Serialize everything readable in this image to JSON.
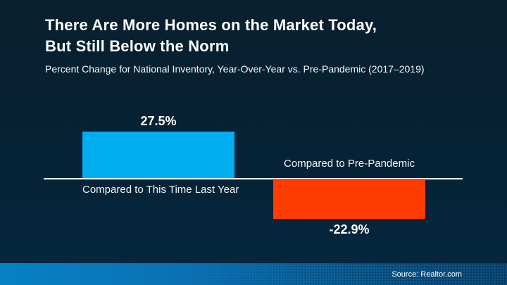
{
  "slide": {
    "title_line1": "There Are More Homes on the Market Today,",
    "title_line2": "But Still Below the Norm",
    "subtitle": "Percent Change for National Inventory, Year-Over-Year vs. Pre-Pandemic (2017–2019)",
    "source": "Source: Realtor.com",
    "colors": {
      "background_top": "#081f2e",
      "background_bottom": "#05273f",
      "title_text": "#ffffff",
      "axis_line": "#ffffff",
      "footer_gradient_left": "#0781c5",
      "footer_gradient_right": "#0d4a77"
    }
  },
  "chart_data": {
    "type": "bar",
    "title": "There Are More Homes on the Market Today, But Still Below the Norm",
    "subtitle": "Percent Change for National Inventory, Year-Over-Year vs. Pre-Pandemic (2017–2019)",
    "categories": [
      "Compared to This Time Last Year",
      "Compared to Pre-Pandemic"
    ],
    "values": [
      27.5,
      -22.9
    ],
    "value_labels": [
      "27.5%",
      "-22.9%"
    ],
    "bar_colors": [
      "#00aeef",
      "#fe3b01"
    ],
    "baseline": 0,
    "ylim": [
      -30,
      35
    ],
    "grid": false,
    "legend": false,
    "axis_line_color": "#ffffff",
    "source": "Source: Realtor.com"
  }
}
